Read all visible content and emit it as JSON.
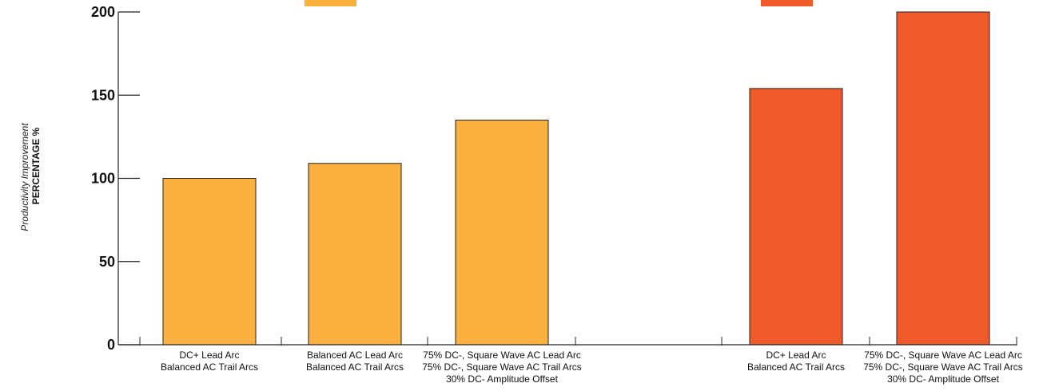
{
  "chart_data": {
    "type": "bar",
    "ylabel_lines": [
      "Productivity Improvement",
      "PERCENTAGE  %"
    ],
    "ylim": [
      0,
      200
    ],
    "yticks": [
      0,
      50,
      100,
      150,
      200
    ],
    "grid": false,
    "groups": [
      {
        "color": "#FBB040",
        "bars": [
          {
            "label_lines": [
              "DC+ Lead Arc",
              "Balanced AC Trail Arcs"
            ],
            "value": 100
          },
          {
            "label_lines": [
              "Balanced AC Lead Arc",
              "Balanced AC Trail Arcs"
            ],
            "value": 109
          },
          {
            "label_lines": [
              "75% DC-, Square Wave AC Lead Arc",
              "75% DC-, Square Wave AC Trail Arcs",
              "30% DC- Amplitude Offset"
            ],
            "value": 135
          }
        ]
      },
      {
        "color": "#F15A2B",
        "bars": [
          {
            "label_lines": [
              "DC+ Lead Arc",
              "Balanced AC Trail Arcs"
            ],
            "value": 154
          },
          {
            "label_lines": [
              "75% DC-, Square Wave AC Lead Arc",
              "75% DC-, Square Wave AC Trail Arcs",
              "30% DC- Amplitude Offset"
            ],
            "value": 200
          }
        ]
      }
    ]
  }
}
